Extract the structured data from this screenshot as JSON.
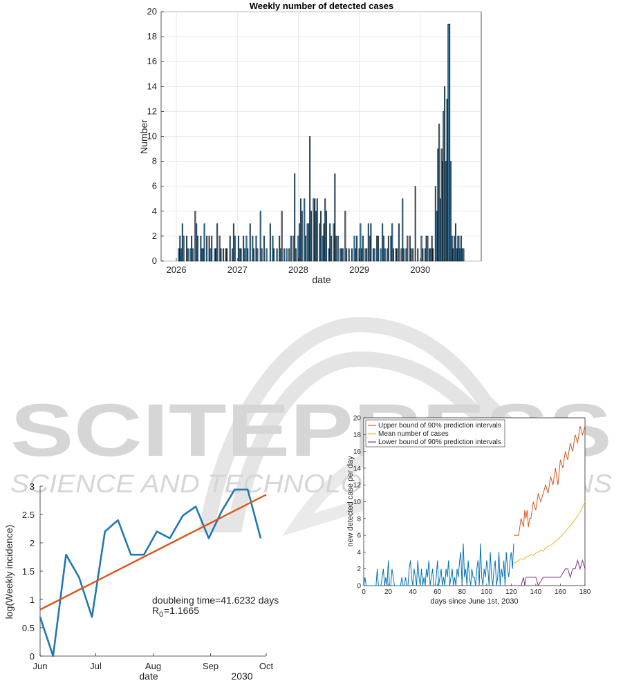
{
  "watermark": {
    "big": "SCITEPRESS",
    "small": "SCIENCE AND TECHNOLOGY PUBLICATIONS",
    "color": "#d6d6d6"
  },
  "chart_data": [
    {
      "type": "bar",
      "title": "Weekly number of detected cases",
      "xlabel": "date",
      "ylabel": "Number",
      "x_tick_labels": [
        "2026",
        "2027",
        "2028",
        "2029",
        "2030"
      ],
      "y_tick_labels": [
        "0",
        "2",
        "4",
        "6",
        "8",
        "10",
        "12",
        "14",
        "16",
        "18",
        "20"
      ],
      "xlim": [
        2025.75,
        2031.0
      ],
      "ylim": [
        0,
        20
      ],
      "grid": true,
      "bar_color": "#3e8fc4",
      "series": [
        {
          "x": [
            2026.04,
            2026.06,
            2026.08,
            2026.1,
            2026.12,
            2026.17,
            2026.19,
            2026.23,
            2026.25,
            2026.27,
            2026.31,
            2026.33,
            2026.35,
            2026.4,
            2026.42,
            2026.44,
            2026.46,
            2026.5,
            2026.54,
            2026.56,
            2026.58,
            2026.63,
            2026.65,
            2026.67,
            2026.71,
            2026.73,
            2026.77,
            2026.81,
            2026.83,
            2026.88,
            2026.92,
            2026.94,
            2026.96,
            2027.02,
            2027.04,
            2027.06,
            2027.1,
            2027.12,
            2027.15,
            2027.17,
            2027.21,
            2027.25,
            2027.27,
            2027.31,
            2027.33,
            2027.38,
            2027.4,
            2027.44,
            2027.48,
            2027.54,
            2027.58,
            2027.6,
            2027.65,
            2027.69,
            2027.71,
            2027.73,
            2027.77,
            2027.81,
            2027.85,
            2027.88,
            2027.92,
            2027.94,
            2027.96,
            2028.0,
            2028.02,
            2028.04,
            2028.06,
            2028.1,
            2028.12,
            2028.15,
            2028.17,
            2028.19,
            2028.21,
            2028.25,
            2028.27,
            2028.29,
            2028.31,
            2028.35,
            2028.37,
            2028.4,
            2028.42,
            2028.44,
            2028.46,
            2028.5,
            2028.52,
            2028.54,
            2028.58,
            2028.6,
            2028.62,
            2028.65,
            2028.69,
            2028.71,
            2028.73,
            2028.77,
            2028.79,
            2028.83,
            2028.88,
            2028.92,
            2028.94,
            2028.96,
            2029.0,
            2029.02,
            2029.04,
            2029.06,
            2029.1,
            2029.12,
            2029.15,
            2029.17,
            2029.19,
            2029.23,
            2029.25,
            2029.29,
            2029.31,
            2029.35,
            2029.38,
            2029.4,
            2029.42,
            2029.46,
            2029.48,
            2029.52,
            2029.54,
            2029.56,
            2029.6,
            2029.62,
            2029.65,
            2029.69,
            2029.71,
            2029.73,
            2029.77,
            2029.79,
            2029.83,
            2029.85,
            2029.88,
            2029.92,
            2029.96,
            2030.02,
            2030.04,
            2030.08,
            2030.1,
            2030.12,
            2030.15,
            2030.17,
            2030.19,
            2030.21,
            2030.25,
            2030.27,
            2030.29,
            2030.31,
            2030.33,
            2030.35,
            2030.37,
            2030.38,
            2030.4,
            2030.42,
            2030.44,
            2030.46,
            2030.48,
            2030.5,
            2030.52,
            2030.54,
            2030.56,
            2030.58,
            2030.6,
            2030.62,
            2030.63,
            2030.65,
            2030.67,
            2030.69,
            2030.71
          ],
          "values": [
            1,
            2,
            1,
            3,
            2,
            2,
            1,
            1,
            2,
            1,
            4,
            3,
            2,
            2,
            1,
            1,
            3,
            2,
            2,
            1,
            2,
            1,
            1,
            3,
            2,
            1,
            1,
            1,
            1,
            2,
            1,
            3,
            2,
            2,
            1,
            1,
            2,
            1,
            2,
            1,
            3,
            2,
            1,
            2,
            1,
            4,
            1,
            2,
            1,
            3,
            2,
            1,
            1,
            2,
            1,
            4,
            1,
            1,
            1,
            2,
            2,
            7,
            1,
            2,
            3,
            5,
            4,
            5,
            2,
            3,
            3,
            10,
            4,
            5,
            5,
            4,
            5,
            3,
            4,
            2,
            3,
            5,
            4,
            1,
            3,
            2,
            3,
            7,
            2,
            2,
            1,
            1,
            1,
            4,
            1,
            1,
            1,
            2,
            1,
            2,
            1,
            3,
            1,
            2,
            1,
            1,
            3,
            2,
            3,
            1,
            1,
            2,
            2,
            1,
            3,
            2,
            1,
            1,
            2,
            2,
            3,
            1,
            1,
            1,
            3,
            1,
            5,
            1,
            1,
            2,
            2,
            1,
            1,
            6,
            1,
            2,
            1,
            1,
            2,
            2,
            1,
            1,
            2,
            1,
            6,
            4,
            9,
            11,
            5,
            9,
            8,
            12,
            14,
            8,
            13,
            19,
            19,
            8,
            2,
            1,
            2,
            3,
            1,
            2,
            2,
            1,
            2,
            1,
            1
          ]
        }
      ]
    },
    {
      "type": "line",
      "title": "",
      "xlabel": "date",
      "ylabel": "log(Weekly incidence)",
      "x_tick_labels": [
        "Jun",
        "Jul",
        "Aug",
        "Sep",
        "Oct"
      ],
      "x_secondary_label": "2030",
      "y_tick_labels": [
        "0",
        "0.5",
        "1",
        "1.5",
        "2",
        "2.5",
        "3"
      ],
      "xlim": [
        "2030-06-01",
        "2030-10-01"
      ],
      "ylim": [
        0,
        3
      ],
      "series": [
        {
          "color": "#1f77b4",
          "x": [
            "2030-06-01",
            "2030-06-08",
            "2030-06-15",
            "2030-06-22",
            "2030-06-29",
            "2030-07-06",
            "2030-07-13",
            "2030-07-20",
            "2030-07-27",
            "2030-08-03",
            "2030-08-10",
            "2030-08-17",
            "2030-08-24",
            "2030-08-31",
            "2030-09-07",
            "2030-09-14",
            "2030-09-21",
            "2030-09-28"
          ],
          "values": [
            0.69,
            0.0,
            1.79,
            1.39,
            0.69,
            2.2,
            2.4,
            1.79,
            1.79,
            2.2,
            2.08,
            2.48,
            2.64,
            2.08,
            2.56,
            2.94,
            2.94,
            2.08
          ]
        },
        {
          "color": "#d95319",
          "x": [
            "2030-06-01",
            "2030-10-01"
          ],
          "values": [
            0.82,
            2.85
          ]
        }
      ],
      "annotations": [
        "doubleing time=41.6232 days",
        "R",
        "0",
        "=1.1665"
      ]
    },
    {
      "type": "line",
      "title": "",
      "xlabel": "days since June 1st, 2030",
      "ylabel": "new detected case per day",
      "x_tick_labels": [
        "0",
        "20",
        "40",
        "60",
        "80",
        "100",
        "120",
        "140",
        "160",
        "180"
      ],
      "y_tick_labels": [
        "0",
        "2",
        "4",
        "6",
        "8",
        "10",
        "12",
        "14",
        "16",
        "18",
        "20"
      ],
      "xlim": [
        0,
        180
      ],
      "ylim": [
        0,
        20
      ],
      "legend": {
        "position": "top-left",
        "entries": [
          {
            "label": "Upper bound of 90% prediction intervals",
            "color": "#d95319"
          },
          {
            "label": "Mean number of cases",
            "color": "#edb120"
          },
          {
            "label": "Lower bound of 90% prediction intervals",
            "color": "#7e2f8e"
          }
        ]
      },
      "series": [
        {
          "name": "observed",
          "color": "#0072bd",
          "x": [
            0,
            1,
            2,
            3,
            4,
            5,
            6,
            7,
            8,
            9,
            10,
            11,
            12,
            13,
            14,
            15,
            16,
            17,
            18,
            19,
            20,
            21,
            22,
            23,
            24,
            25,
            26,
            27,
            28,
            29,
            30,
            31,
            32,
            33,
            34,
            35,
            36,
            37,
            38,
            39,
            40,
            41,
            42,
            43,
            44,
            45,
            46,
            47,
            48,
            49,
            50,
            51,
            52,
            53,
            54,
            55,
            56,
            57,
            58,
            59,
            60,
            61,
            62,
            63,
            64,
            65,
            66,
            67,
            68,
            69,
            70,
            71,
            72,
            73,
            74,
            75,
            76,
            77,
            78,
            79,
            80,
            81,
            82,
            83,
            84,
            85,
            86,
            87,
            88,
            89,
            90,
            91,
            92,
            93,
            94,
            95,
            96,
            97,
            98,
            99,
            100,
            101,
            102,
            103,
            104,
            105,
            106,
            107,
            108,
            109,
            110,
            111,
            112,
            113,
            114,
            115,
            116,
            117,
            118,
            119,
            120,
            121,
            122
          ],
          "values": [
            0,
            1,
            0,
            0,
            0,
            0,
            0,
            0,
            0,
            0,
            0,
            2,
            0,
            0,
            0,
            1,
            2,
            0,
            1,
            0,
            3,
            0,
            0,
            2,
            1,
            0,
            0,
            0,
            0,
            0,
            0,
            1,
            0,
            0,
            1,
            0,
            0,
            2,
            3,
            1,
            0,
            2,
            1,
            0,
            3,
            1,
            0,
            2,
            0,
            1,
            0,
            2,
            1,
            3,
            0,
            1,
            2,
            0,
            0,
            1,
            3,
            0,
            1,
            2,
            0,
            1,
            0,
            2,
            1,
            3,
            0,
            1,
            2,
            0,
            1,
            0,
            2,
            1,
            3,
            4,
            0,
            5,
            1,
            2,
            0,
            3,
            1,
            0,
            2,
            1,
            1,
            0,
            2,
            3,
            0,
            5,
            1,
            0,
            2,
            1,
            3,
            2,
            0,
            4,
            1,
            0,
            2,
            3,
            0,
            1,
            4,
            0,
            2,
            1,
            3,
            0,
            4,
            2,
            1,
            3,
            4,
            2,
            5
          ]
        },
        {
          "name": "Upper bound of 90% prediction intervals",
          "color": "#d95319",
          "x": [
            122,
            124,
            126,
            128,
            130,
            131,
            132,
            133,
            134,
            135,
            136,
            138,
            140,
            142,
            144,
            146,
            148,
            150,
            152,
            154,
            156,
            158,
            160,
            162,
            164,
            166,
            168,
            170,
            172,
            174,
            176,
            178,
            180
          ],
          "values": [
            6,
            6,
            6,
            8,
            7,
            9,
            8,
            9,
            7,
            8,
            8,
            10,
            9,
            11,
            10,
            11,
            12,
            11,
            13,
            12,
            14,
            12,
            15,
            14,
            16,
            15,
            17,
            16,
            18,
            17,
            19,
            18,
            19
          ]
        },
        {
          "name": "Mean number of cases",
          "color": "#edb120",
          "x": [
            122,
            124,
            126,
            128,
            130,
            132,
            134,
            136,
            138,
            140,
            142,
            144,
            146,
            148,
            150,
            152,
            154,
            156,
            158,
            160,
            162,
            164,
            166,
            168,
            170,
            172,
            174,
            176,
            178,
            180
          ],
          "values": [
            2.7,
            2.8,
            3.0,
            3.2,
            3.1,
            3.4,
            3.5,
            3.7,
            3.6,
            3.9,
            4.0,
            4.2,
            4.1,
            4.5,
            4.7,
            4.8,
            5.0,
            5.3,
            5.5,
            5.8,
            6.1,
            6.4,
            6.8,
            7.1,
            7.5,
            7.9,
            8.3,
            8.8,
            9.3,
            10.0
          ]
        },
        {
          "name": "Lower bound of 90% prediction intervals",
          "color": "#7e2f8e",
          "x": [
            122,
            128,
            130,
            131,
            132,
            136,
            140,
            142,
            146,
            150,
            154,
            158,
            160,
            164,
            166,
            168,
            170,
            172,
            174,
            176,
            178,
            180
          ],
          "values": [
            0,
            0,
            1,
            0,
            1,
            1,
            1,
            0,
            1,
            1,
            1,
            1,
            1,
            2,
            2,
            1,
            2,
            2,
            3,
            2,
            3,
            2
          ]
        }
      ]
    }
  ]
}
